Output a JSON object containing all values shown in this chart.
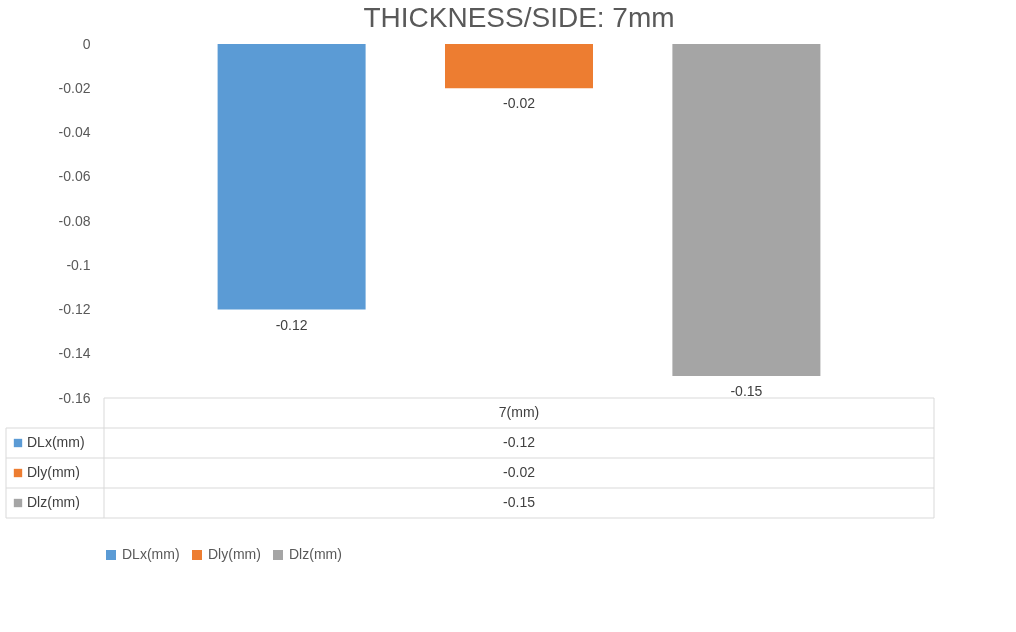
{
  "chart_data": {
    "type": "bar",
    "title": "THICKNESS/SIDE: 7mm",
    "categories": [
      "7(mm)"
    ],
    "series": [
      {
        "name": "DLx(mm)",
        "color": "#5b9bd5",
        "values": [
          -0.12
        ]
      },
      {
        "name": "Dly(mm)",
        "color": "#ed7d31",
        "values": [
          -0.02
        ]
      },
      {
        "name": "Dlz(mm)",
        "color": "#a5a5a5",
        "values": [
          -0.15
        ]
      }
    ],
    "annotations": [
      "-0.12",
      "-0.02",
      "-0.15"
    ],
    "ylim": [
      -0.16,
      0
    ],
    "yticks": [
      0,
      -0.02,
      -0.04,
      -0.06,
      -0.08,
      -0.1,
      -0.12,
      -0.14,
      -0.16
    ],
    "grid": false,
    "legend": "bottom",
    "data_labels": true
  }
}
